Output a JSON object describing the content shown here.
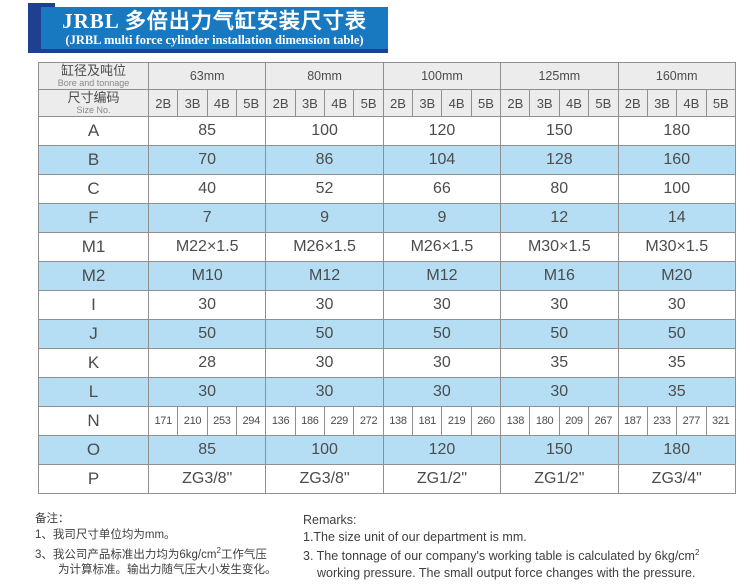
{
  "banner": {
    "title_zh": "JRBL 多倍出力气缸安装尺寸表",
    "title_en": "(JRBL multi force cylinder installation dimension table)"
  },
  "table": {
    "corner": {
      "row1_zh": "缸径及吨位",
      "row1_en": "Bore and tonnage",
      "row2_zh": "尺寸编码",
      "row2_en": "Size No."
    },
    "sizes": [
      "63mm",
      "80mm",
      "100mm",
      "125mm",
      "160mm"
    ],
    "sub_headers": [
      "2B",
      "3B",
      "4B",
      "5B"
    ],
    "rows": [
      {
        "label": "A",
        "values": [
          "85",
          "100",
          "120",
          "150",
          "180"
        ]
      },
      {
        "label": "B",
        "values": [
          "70",
          "86",
          "104",
          "128",
          "160"
        ]
      },
      {
        "label": "C",
        "values": [
          "40",
          "52",
          "66",
          "80",
          "100"
        ]
      },
      {
        "label": "F",
        "values": [
          "7",
          "9",
          "9",
          "12",
          "14"
        ]
      },
      {
        "label": "M1",
        "values": [
          "M22×1.5",
          "M26×1.5",
          "M26×1.5",
          "M30×1.5",
          "M30×1.5"
        ]
      },
      {
        "label": "M2",
        "values": [
          "M10",
          "M12",
          "M12",
          "M16",
          "M20"
        ]
      },
      {
        "label": "I",
        "values": [
          "30",
          "30",
          "30",
          "30",
          "30"
        ]
      },
      {
        "label": "J",
        "values": [
          "50",
          "50",
          "50",
          "50",
          "50"
        ]
      },
      {
        "label": "K",
        "values": [
          "28",
          "30",
          "30",
          "35",
          "35"
        ]
      },
      {
        "label": "L",
        "values": [
          "30",
          "30",
          "30",
          "30",
          "35"
        ]
      },
      {
        "label": "N",
        "values": [
          "171",
          "210",
          "253",
          "294",
          "136",
          "186",
          "229",
          "272",
          "138",
          "181",
          "219",
          "260",
          "138",
          "180",
          "209",
          "267",
          "187",
          "233",
          "277",
          "321"
        ]
      },
      {
        "label": "O",
        "values": [
          "85",
          "100",
          "120",
          "150",
          "180"
        ]
      },
      {
        "label": "P",
        "values": [
          "ZG3/8\"",
          "ZG3/8\"",
          "ZG1/2\"",
          "ZG1/2\"",
          "ZG3/4\""
        ]
      }
    ]
  },
  "remarks_zh": {
    "title": "备注：",
    "line1": "1、我司尺寸单位均为mm。",
    "line3_pre": "3、我公司产品标准出力均为6kg/cm",
    "line3_sup": "2",
    "line3_post": "工作气压",
    "line4": "为计算标准。输出力随气压大小发生变化。"
  },
  "remarks_en": {
    "title": "Remarks:",
    "line1": "1.The size unit of our department is mm.",
    "line3_pre": "3. The tonnage of our company's working table is calculated by 6kg/cm",
    "line3_sup": "2",
    "line4": "working pressure. The small output force changes with the pressure."
  },
  "colors": {
    "banner_blue": "#1879c0",
    "banner_navy": "#1d4090",
    "row_blue": "#b5def4",
    "header_gray": "#ececec",
    "border_gray": "#8f8f8f",
    "text_gray": "#4c4c4c"
  }
}
